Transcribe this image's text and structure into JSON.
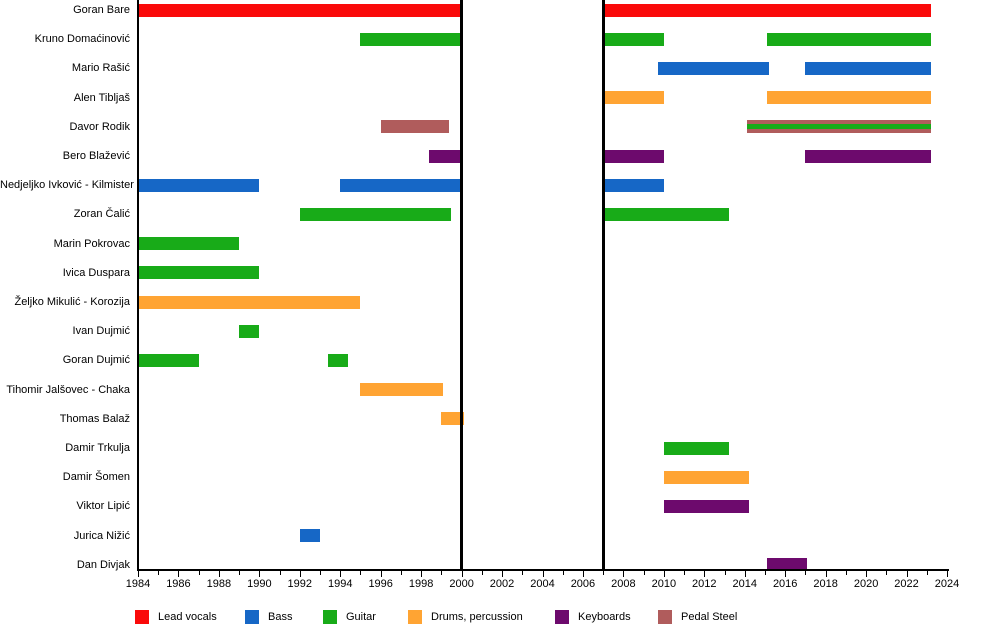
{
  "chart_data": {
    "type": "bar",
    "subtype": "gantt-member-timeline",
    "title": "",
    "x_axis": {
      "min": 1984,
      "max": 2024,
      "tick_step": 2,
      "minor_tick_step": 1,
      "tick_labels": [
        "1984",
        "1986",
        "1988",
        "1990",
        "1992",
        "1994",
        "1996",
        "1998",
        "2000",
        "2002",
        "2004",
        "2006",
        "2008",
        "2010",
        "2012",
        "2014",
        "2016",
        "2018",
        "2020",
        "2022",
        "2024"
      ]
    },
    "hiatus_lines": [
      2000,
      2007
    ],
    "roles": {
      "lead_vocals": {
        "label": "Lead vocals",
        "color": "#FA0A0A"
      },
      "bass": {
        "label": "Bass",
        "color": "#1667C6"
      },
      "guitar": {
        "label": "Guitar",
        "color": "#18AB18"
      },
      "drums": {
        "label": "Drums, percussion",
        "color": "#FFA433"
      },
      "keyboards": {
        "label": "Keyboards",
        "color": "#6D0A6D"
      },
      "pedal_steel": {
        "label": "Pedal Steel",
        "color": "#B05C5C"
      }
    },
    "members": [
      {
        "name": "Goran Bare",
        "segments": [
          {
            "role": "lead_vocals",
            "start": 1984,
            "end": 2000
          },
          {
            "role": "lead_vocals",
            "start": 2007,
            "end": 2023.2
          }
        ]
      },
      {
        "name": "Kruno Domaćinović",
        "segments": [
          {
            "role": "guitar",
            "start": 1995,
            "end": 2000
          },
          {
            "role": "guitar",
            "start": 2007,
            "end": 2010
          },
          {
            "role": "guitar",
            "start": 2015.1,
            "end": 2023.2
          }
        ]
      },
      {
        "name": "Mario Rašić",
        "segments": [
          {
            "role": "bass",
            "start": 2009.7,
            "end": 2015.2
          },
          {
            "role": "bass",
            "start": 2017,
            "end": 2023.2
          }
        ]
      },
      {
        "name": "Alen Tibljaš",
        "segments": [
          {
            "role": "drums",
            "start": 2007,
            "end": 2010
          },
          {
            "role": "drums",
            "start": 2015.1,
            "end": 2023.2
          }
        ]
      },
      {
        "name": "Davor Rodik",
        "segments": [
          {
            "role": "pedal_steel",
            "start": 1996,
            "end": 1999.4
          },
          {
            "roles": [
              "pedal_steel",
              "guitar"
            ],
            "start": 2014.1,
            "end": 2023.2
          }
        ]
      },
      {
        "name": "Bero Blažević",
        "segments": [
          {
            "role": "keyboards",
            "start": 1998.4,
            "end": 2000
          },
          {
            "role": "keyboards",
            "start": 2007,
            "end": 2010
          },
          {
            "role": "keyboards",
            "start": 2017,
            "end": 2023.2
          }
        ]
      },
      {
        "name": "Nedjeljko Ivković - Kilmister",
        "segments": [
          {
            "role": "bass",
            "start": 1984,
            "end": 1990
          },
          {
            "role": "bass",
            "start": 1994,
            "end": 2000
          },
          {
            "role": "bass",
            "start": 2007,
            "end": 2010
          }
        ]
      },
      {
        "name": "Zoran Čalić",
        "segments": [
          {
            "role": "guitar",
            "start": 1992,
            "end": 1999.5
          },
          {
            "role": "guitar",
            "start": 2007,
            "end": 2013.2
          }
        ]
      },
      {
        "name": "Marin Pokrovac",
        "segments": [
          {
            "role": "guitar",
            "start": 1984,
            "end": 1989
          }
        ]
      },
      {
        "name": "Ivica Duspara",
        "segments": [
          {
            "role": "guitar",
            "start": 1984,
            "end": 1990
          }
        ]
      },
      {
        "name": "Željko Mikulić - Korozija",
        "segments": [
          {
            "role": "drums",
            "start": 1984,
            "end": 1995
          }
        ]
      },
      {
        "name": "Ivan Dujmić",
        "segments": [
          {
            "role": "guitar",
            "start": 1989,
            "end": 1990
          }
        ]
      },
      {
        "name": "Goran Dujmić",
        "segments": [
          {
            "role": "guitar",
            "start": 1984,
            "end": 1987
          },
          {
            "role": "guitar",
            "start": 1993.4,
            "end": 1994.4
          }
        ]
      },
      {
        "name": "Tihomir Jalšovec - Chaka",
        "segments": [
          {
            "role": "drums",
            "start": 1995,
            "end": 1999.1
          }
        ]
      },
      {
        "name": "Thomas Balaž",
        "segments": [
          {
            "role": "drums",
            "start": 1999,
            "end": 2000.1
          }
        ]
      },
      {
        "name": "Damir Trkulja",
        "segments": [
          {
            "role": "guitar",
            "start": 2010,
            "end": 2013.2
          }
        ]
      },
      {
        "name": "Damir Šomen",
        "segments": [
          {
            "role": "drums",
            "start": 2010,
            "end": 2014.2
          }
        ]
      },
      {
        "name": "Viktor Lipić",
        "segments": [
          {
            "role": "keyboards",
            "start": 2010,
            "end": 2014.2
          }
        ]
      },
      {
        "name": "Jurica Nižić",
        "segments": [
          {
            "role": "bass",
            "start": 1992,
            "end": 1993
          }
        ]
      },
      {
        "name": "Dan Divjak",
        "segments": [
          {
            "role": "keyboards",
            "start": 2015.1,
            "end": 2017.1
          }
        ]
      }
    ],
    "legend": {
      "position": "bottom",
      "items": [
        "lead_vocals",
        "bass",
        "guitar",
        "drums",
        "keyboards",
        "pedal_steel"
      ]
    },
    "grid": false,
    "axis_color": "#000000",
    "background_color": "#FFFFFF"
  }
}
